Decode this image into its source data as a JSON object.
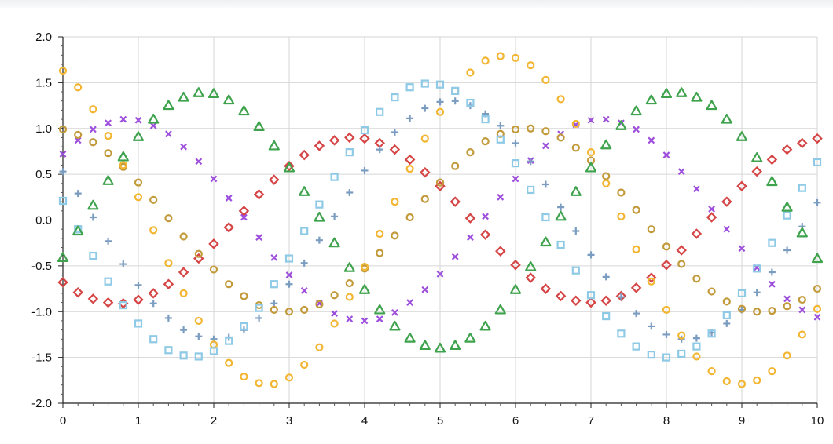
{
  "chart_data": {
    "type": "scatter",
    "xlim": [
      0,
      10
    ],
    "ylim": [
      -2.0,
      2.0
    ],
    "x_ticks": [
      "0",
      "1",
      "2",
      "3",
      "4",
      "5",
      "6",
      "7",
      "8",
      "9",
      "10"
    ],
    "y_ticks": [
      "2.0",
      "1.5",
      "1.0",
      "0.5",
      "0.0",
      "-0.5",
      "-1.0",
      "-1.5",
      "-2.0"
    ],
    "grid": true,
    "x": [
      0,
      0.2,
      0.4,
      0.6,
      0.8,
      1.0,
      1.2,
      1.4,
      1.6,
      1.8,
      2.0,
      2.2,
      2.4,
      2.6,
      2.8,
      3.0,
      3.2,
      3.4,
      3.6,
      3.8,
      4.0,
      4.2,
      4.4,
      4.6,
      4.8,
      5.0,
      5.2,
      5.4,
      5.6,
      5.8,
      6.0,
      6.2,
      6.4,
      6.6,
      6.8,
      7.0,
      7.2,
      7.4,
      7.6,
      7.8,
      8.0,
      8.2,
      8.4,
      8.6,
      8.8,
      9.0,
      9.2,
      9.4,
      9.6,
      9.8,
      10.0
    ],
    "series": [
      {
        "marker": "diamond",
        "color": "#d64545",
        "values": [
          -0.68,
          -0.79,
          -0.86,
          -0.9,
          -0.91,
          -0.87,
          -0.8,
          -0.7,
          -0.57,
          -0.42,
          -0.26,
          -0.08,
          0.1,
          0.28,
          0.44,
          0.59,
          0.71,
          0.81,
          0.87,
          0.9,
          0.89,
          0.84,
          0.77,
          0.66,
          0.52,
          0.37,
          0.2,
          0.02,
          -0.16,
          -0.34,
          -0.49,
          -0.63,
          -0.75,
          -0.83,
          -0.88,
          -0.9,
          -0.88,
          -0.83,
          -0.74,
          -0.63,
          -0.49,
          -0.33,
          -0.15,
          0.03,
          0.2,
          0.37,
          0.53,
          0.66,
          0.77,
          0.84,
          0.89
        ]
      },
      {
        "marker": "x",
        "color": "#9d4edd",
        "values": [
          0.72,
          0.87,
          0.99,
          1.06,
          1.1,
          1.09,
          1.03,
          0.94,
          0.8,
          0.64,
          0.45,
          0.24,
          0.03,
          -0.19,
          -0.41,
          -0.6,
          -0.77,
          -0.91,
          -1.02,
          -1.08,
          -1.1,
          -1.08,
          -1.01,
          -0.9,
          -0.76,
          -0.59,
          -0.4,
          -0.19,
          0.04,
          0.25,
          0.45,
          0.65,
          0.81,
          0.94,
          1.04,
          1.09,
          1.1,
          1.06,
          0.99,
          0.87,
          0.71,
          0.53,
          0.34,
          0.12,
          -0.1,
          -0.31,
          -0.52,
          -0.7,
          -0.86,
          -0.98,
          -1.06
        ]
      },
      {
        "marker": "plus",
        "color": "#7a9cc0",
        "values": [
          0.53,
          0.29,
          0.03,
          -0.23,
          -0.48,
          -0.71,
          -0.91,
          -1.07,
          -1.2,
          -1.27,
          -1.3,
          -1.28,
          -1.2,
          -1.07,
          -0.91,
          -0.7,
          -0.47,
          -0.22,
          0.04,
          0.3,
          0.54,
          0.77,
          0.96,
          1.11,
          1.22,
          1.29,
          1.3,
          1.25,
          1.16,
          1.03,
          0.84,
          0.64,
          0.39,
          0.14,
          -0.12,
          -0.38,
          -0.62,
          -0.84,
          -1.02,
          -1.16,
          -1.25,
          -1.3,
          -1.29,
          -1.23,
          -1.13,
          -0.98,
          -0.79,
          -0.57,
          -0.33,
          -0.07,
          0.19
        ]
      },
      {
        "marker": "circle",
        "color": "#c29a3a",
        "values": [
          0.99,
          0.93,
          0.85,
          0.73,
          0.58,
          0.41,
          0.22,
          0.02,
          -0.18,
          -0.37,
          -0.54,
          -0.7,
          -0.83,
          -0.93,
          -0.98,
          -1.0,
          -0.98,
          -0.92,
          -0.82,
          -0.69,
          -0.53,
          -0.36,
          -0.17,
          0.03,
          0.23,
          0.41,
          0.59,
          0.74,
          0.86,
          0.94,
          0.99,
          1.0,
          0.97,
          0.9,
          0.79,
          0.65,
          0.48,
          0.3,
          0.11,
          -0.1,
          -0.29,
          -0.48,
          -0.64,
          -0.78,
          -0.89,
          -0.97,
          -1.0,
          -0.99,
          -0.94,
          -0.87,
          -0.75
        ]
      },
      {
        "marker": "circle",
        "color": "#f2b632",
        "values": [
          1.63,
          1.45,
          1.21,
          0.92,
          0.6,
          0.25,
          -0.11,
          -0.47,
          -0.8,
          -1.1,
          -1.36,
          -1.56,
          -1.71,
          -1.78,
          -1.79,
          -1.72,
          -1.58,
          -1.39,
          -1.13,
          -0.84,
          -0.51,
          -0.15,
          0.2,
          0.56,
          0.89,
          1.18,
          1.41,
          1.61,
          1.74,
          1.79,
          1.77,
          1.69,
          1.53,
          1.32,
          1.05,
          0.74,
          0.4,
          0.04,
          -0.32,
          -0.67,
          -0.98,
          -1.26,
          -1.49,
          -1.65,
          -1.76,
          -1.79,
          -1.75,
          -1.65,
          -1.48,
          -1.25,
          -0.97
        ]
      },
      {
        "marker": "square",
        "color": "#8ecae6",
        "values": [
          0.21,
          -0.1,
          -0.39,
          -0.67,
          -0.93,
          -1.13,
          -1.3,
          -1.42,
          -1.48,
          -1.49,
          -1.43,
          -1.32,
          -1.16,
          -0.96,
          -0.7,
          -0.42,
          -0.12,
          0.17,
          0.47,
          0.74,
          0.98,
          1.18,
          1.34,
          1.45,
          1.49,
          1.48,
          1.41,
          1.28,
          1.1,
          0.88,
          0.62,
          0.33,
          0.03,
          -0.27,
          -0.55,
          -0.82,
          -1.05,
          -1.24,
          -1.38,
          -1.47,
          -1.5,
          -1.46,
          -1.38,
          -1.24,
          -1.04,
          -0.8,
          -0.53,
          -0.25,
          0.05,
          0.35,
          0.63
        ]
      },
      {
        "marker": "triangle",
        "color": "#3fa34d",
        "values": [
          -0.41,
          -0.12,
          0.16,
          0.43,
          0.69,
          0.91,
          1.1,
          1.25,
          1.34,
          1.39,
          1.38,
          1.31,
          1.19,
          1.02,
          0.81,
          0.57,
          0.31,
          0.03,
          -0.25,
          -0.52,
          -0.76,
          -0.98,
          -1.16,
          -1.29,
          -1.37,
          -1.4,
          -1.37,
          -1.29,
          -1.16,
          -0.98,
          -0.76,
          -0.51,
          -0.24,
          0.04,
          0.31,
          0.57,
          0.82,
          1.03,
          1.19,
          1.31,
          1.38,
          1.39,
          1.34,
          1.25,
          1.1,
          0.91,
          0.68,
          0.42,
          0.14,
          -0.14,
          -0.42
        ]
      }
    ]
  }
}
